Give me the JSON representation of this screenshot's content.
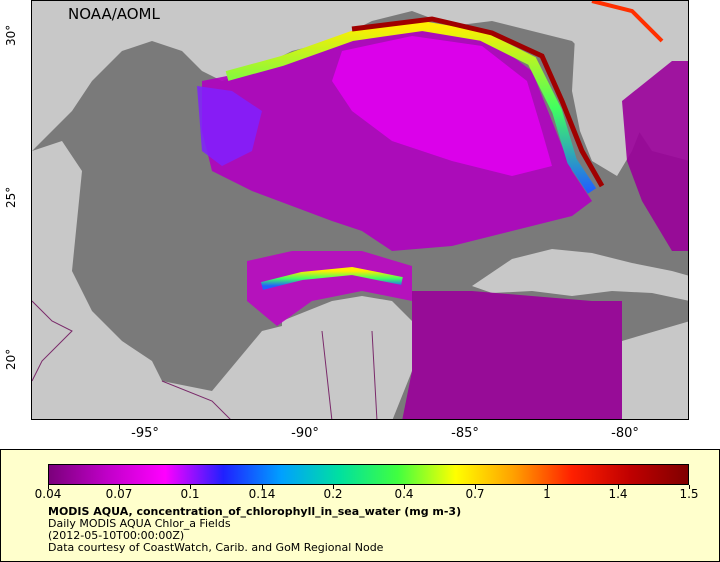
{
  "map": {
    "credit": "NOAA/AOML",
    "lat_labels": [
      "30°",
      "25°",
      "20°"
    ],
    "lon_labels": [
      "-95°",
      "-90°",
      "-85°",
      "-80°"
    ],
    "colors": {
      "land": "#c8c8c8",
      "no_data": "#7a7a7a",
      "border": "#7a2a6a"
    }
  },
  "legend": {
    "tick_labels": [
      "0.04",
      "0.07",
      "0.1",
      "0.14",
      "0.2",
      "0.4",
      "0.7",
      "1",
      "1.4",
      "1.5"
    ],
    "title": "MODIS AQUA, concentration_of_chlorophyll_in_sea_water (mg m-3)",
    "line1": "Daily MODIS AQUA Chlor_a Fields",
    "line2": "(2012-05-10T00:00:00Z)",
    "line3": "Data courtesy of CoastWatch, Carib. and GoM Regional Node",
    "gradient": [
      "#7b007b",
      "#c000c8",
      "#ff00ff",
      "#2020ff",
      "#00a0ff",
      "#00e0a0",
      "#40ff40",
      "#ffff00",
      "#ffa000",
      "#ff2000",
      "#c00000",
      "#800000"
    ]
  }
}
